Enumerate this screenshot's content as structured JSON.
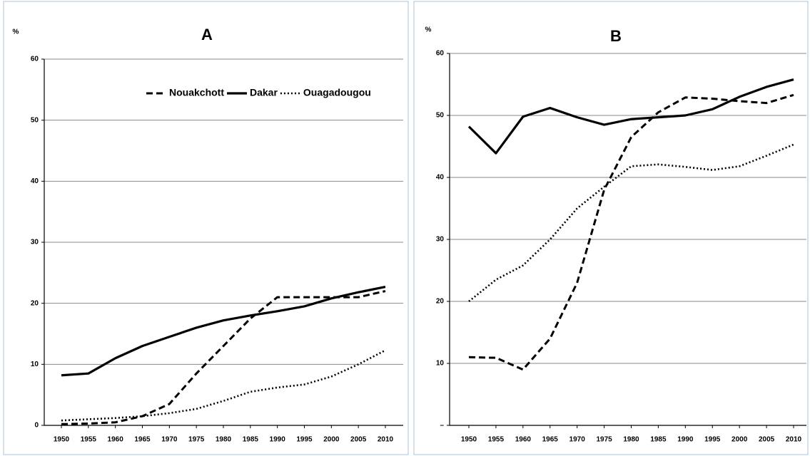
{
  "chart_data": [
    {
      "type": "line",
      "title": "A",
      "y_label": "%",
      "x": [
        1950,
        1955,
        1960,
        1965,
        1970,
        1975,
        1980,
        1985,
        1990,
        1995,
        2000,
        2005,
        2010
      ],
      "series": [
        {
          "name": "Nouakchott",
          "color": "#000000",
          "dash": "dashed",
          "values": [
            0.2,
            0.3,
            0.5,
            1.5,
            3.5,
            8.5,
            13,
            17.5,
            21,
            21,
            21,
            21,
            22
          ]
        },
        {
          "name": "Dakar",
          "color": "#000000",
          "dash": "solid",
          "values": [
            8.2,
            8.5,
            11,
            13,
            14.5,
            16,
            17.2,
            18,
            18.7,
            19.5,
            20.8,
            21.8,
            22.7
          ]
        },
        {
          "name": "Ouagadougou",
          "color": "#000000",
          "dash": "dotted",
          "values": [
            0.8,
            1,
            1.2,
            1.5,
            2,
            2.7,
            4,
            5.5,
            6.2,
            6.7,
            8,
            10,
            12.3
          ]
        }
      ],
      "ylim": [
        0,
        60
      ],
      "yticks": [
        0,
        10,
        20,
        30,
        40,
        50,
        60
      ],
      "grid": true,
      "legend": "top-right"
    },
    {
      "type": "line",
      "title": "B",
      "y_label": "%",
      "x": [
        1950,
        1955,
        1960,
        1965,
        1970,
        1975,
        1980,
        1985,
        1990,
        1995,
        2000,
        2005,
        2010
      ],
      "series": [
        {
          "color": "#000000",
          "dash": "dashed",
          "values": [
            11,
            10.9,
            9,
            14,
            23,
            38,
            46.5,
            50.5,
            52.9,
            52.7,
            52.3,
            52,
            53.3
          ]
        },
        {
          "color": "#000000",
          "dash": "solid",
          "values": [
            48.2,
            43.9,
            49.8,
            51.2,
            49.7,
            48.5,
            49.4,
            49.7,
            50,
            51,
            53,
            54.6,
            55.8
          ]
        },
        {
          "color": "#000000",
          "dash": "dotted",
          "values": [
            20,
            23.5,
            25.8,
            30,
            35,
            38.5,
            41.8,
            42.1,
            41.7,
            41.2,
            41.8,
            43.5,
            45.3
          ]
        }
      ],
      "ylim": [
        0,
        60
      ],
      "yticks": [
        {
          "value": 0,
          "label": "–"
        },
        10,
        20,
        30,
        40,
        50,
        60
      ],
      "grid": true
    }
  ]
}
